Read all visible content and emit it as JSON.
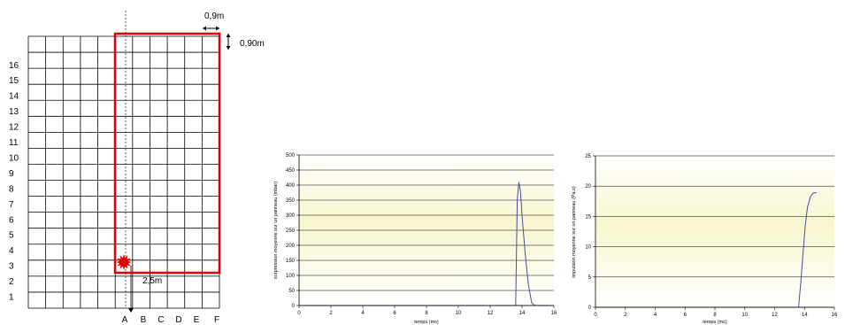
{
  "grid": {
    "row_labels": [
      "1",
      "2",
      "3",
      "4",
      "5",
      "6",
      "7",
      "8",
      "9",
      "10",
      "11",
      "12",
      "13",
      "14",
      "15",
      "16"
    ],
    "column_labels": [
      "A",
      "B",
      "C",
      "D",
      "E",
      "F"
    ],
    "dim_top": "0,9m",
    "dim_right": "0,90m",
    "dim_distance": "2,5m",
    "highlight_color": "#e00000",
    "charge_color": "#e00000"
  },
  "chart_data": [
    {
      "type": "line",
      "xlabel": "temps (ms)",
      "ylabel": "surpression moyenne sur un panneau (mbar)",
      "xlim": [
        0,
        16
      ],
      "ylim": [
        0,
        500
      ],
      "xticks": [
        "0",
        "2",
        "4",
        "6",
        "8",
        "10",
        "12",
        "14",
        "16"
      ],
      "yticks": [
        "0",
        "50",
        "100",
        "150",
        "200",
        "250",
        "300",
        "350",
        "400",
        "450",
        "500"
      ],
      "grid": true,
      "background": "#fbfbe0",
      "series": [
        {
          "color": "#4a4aa0",
          "x": [
            0,
            13.6,
            13.7,
            13.8,
            13.9,
            14.0,
            14.2,
            14.4,
            14.6,
            14.8,
            16
          ],
          "y": [
            0,
            0,
            350,
            410,
            380,
            300,
            170,
            70,
            10,
            0,
            0
          ]
        }
      ]
    },
    {
      "type": "line",
      "xlabel": "temps (ms)",
      "ylabel": "impulsion moyenne sur un panneau (Pa.s)",
      "xlim": [
        0,
        16
      ],
      "ylim": [
        0,
        25
      ],
      "xticks": [
        "0",
        "2",
        "4",
        "6",
        "8",
        "10",
        "12",
        "14",
        "16"
      ],
      "yticks": [
        "0",
        "5",
        "10",
        "15",
        "20",
        "25"
      ],
      "grid": true,
      "background": "#fbfbe0",
      "series": [
        {
          "color": "#4a4aa0",
          "x": [
            0,
            13.6,
            13.75,
            13.9,
            14.05,
            14.2,
            14.4,
            14.6,
            14.8
          ],
          "y": [
            0,
            0,
            4,
            9,
            13.5,
            16.5,
            18.3,
            18.9,
            18.9
          ]
        }
      ]
    }
  ]
}
